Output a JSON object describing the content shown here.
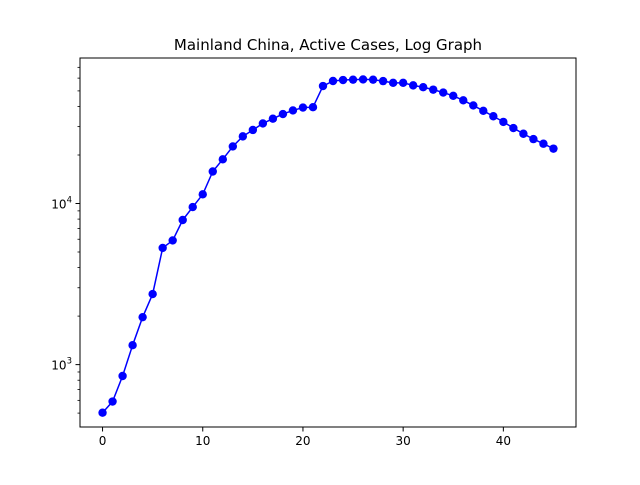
{
  "chart_data": {
    "type": "line",
    "title": "Mainland China, Active Cases, Log Graph",
    "xlabel": "",
    "ylabel": "",
    "xlim": [
      -2.25,
      47.25
    ],
    "ylim": [
      410,
      80000
    ],
    "yscale": "log",
    "grid": false,
    "legend": "none",
    "x_ticks": [
      0,
      10,
      20,
      30,
      40
    ],
    "x_tick_labels": [
      "0",
      "10",
      "20",
      "30",
      "40"
    ],
    "y_major_ticks": [
      1000,
      10000
    ],
    "y_tick_labels": [
      {
        "base": "10",
        "exp": "3"
      },
      {
        "base": "10",
        "exp": "4"
      }
    ],
    "y_minor_ticks": [
      500,
      600,
      700,
      800,
      900,
      2000,
      3000,
      4000,
      5000,
      6000,
      7000,
      8000,
      9000,
      20000,
      30000,
      40000,
      50000,
      60000,
      70000
    ],
    "series": [
      {
        "color": "#0000ff",
        "marker": "circle",
        "x": [
          0,
          1,
          2,
          3,
          4,
          5,
          6,
          7,
          8,
          9,
          10,
          11,
          12,
          13,
          14,
          15,
          16,
          17,
          18,
          19,
          20,
          21,
          22,
          23,
          24,
          25,
          26,
          27,
          28,
          29,
          30,
          31,
          32,
          33,
          34,
          35,
          36,
          37,
          38,
          39,
          40,
          41,
          42,
          43,
          44,
          45
        ],
        "y": [
          503,
          590,
          850,
          1320,
          1970,
          2740,
          5300,
          5900,
          7900,
          9500,
          11400,
          15800,
          18800,
          22600,
          26100,
          28600,
          31400,
          33600,
          35900,
          37800,
          39400,
          39600,
          53600,
          57600,
          58400,
          58700,
          58900,
          58700,
          57500,
          56100,
          56100,
          54100,
          52700,
          50900,
          48800,
          46600,
          43700,
          40600,
          37600,
          34800,
          32100,
          29400,
          27100,
          25100,
          23500,
          21900
        ]
      }
    ]
  }
}
